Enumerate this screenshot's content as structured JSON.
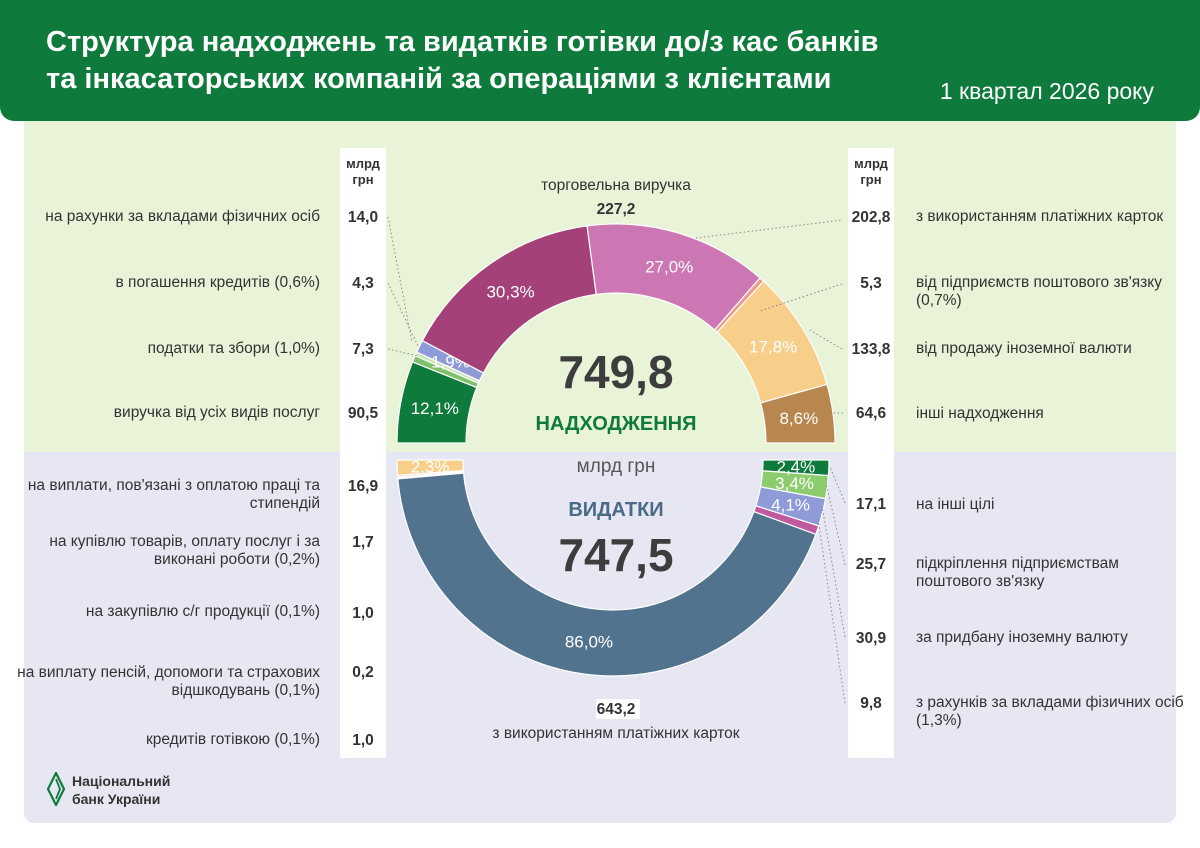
{
  "header": {
    "title_line1": "Структура надходжень та видатків готівки до/з кас банків",
    "title_line2": "та інкасаторських компаній за операціями з клієнтами",
    "period": "1 квартал 2026 року"
  },
  "unit_header_line1": "млрд",
  "unit_header_line2": "грн",
  "logo": {
    "line1": "Національний",
    "line2": "банк України"
  },
  "chart_data": {
    "type": "pie",
    "subtype": "split-donut",
    "colors": {
      "green": "#0e7a3c",
      "light_green": "#7fc06a",
      "blue_lavender": "#8f9bd8",
      "plum": "#a34178",
      "pink": "#cc77b4",
      "salmon": "#f09a8a",
      "peach": "#f8cf8a",
      "brown": "#b8864f",
      "slate": "#52738e",
      "rose": "#c05a9e",
      "mint": "#8ccc6e"
    },
    "inflows": {
      "title": "НАДХОДЖЕННЯ",
      "total": "749,8",
      "total_value": 749.8,
      "slices": [
        {
          "label": "виручка від усіх видів послуг",
          "value": 90.5,
          "value_text": "90,5",
          "pct": "12,1",
          "color": "#0e7a3c"
        },
        {
          "label": "податки та збори (1,0%)",
          "value": 7.3,
          "value_text": "7,3",
          "pct": "",
          "color": "#7fc06a"
        },
        {
          "label": "в погашення кредитів (0,6%)",
          "value": 4.3,
          "value_text": "4,3",
          "pct": "",
          "color": "#c7e5b5"
        },
        {
          "label": "на рахунки за вкладами фізичних осіб",
          "value": 14.0,
          "value_text": "14,0",
          "pct": "1,9",
          "color": "#8f9bd8"
        },
        {
          "label": "торговельна виручка",
          "value": 227.2,
          "value_text": "227,2",
          "pct": "30,3",
          "color": "#a34178"
        },
        {
          "label": "з використанням платіжних карток",
          "value": 202.8,
          "value_text": "202,8",
          "pct": "27,0",
          "color": "#cc77b4"
        },
        {
          "label": "від підприємств поштового зв'язку (0,7%)",
          "value": 5.3,
          "value_text": "5,3",
          "pct": "",
          "color": "#f09a8a"
        },
        {
          "label": "від продажу іноземної валюти",
          "value": 133.8,
          "value_text": "133,8",
          "pct": "17,8",
          "color": "#f8cf8a"
        },
        {
          "label": "інші надходження",
          "value": 64.6,
          "value_text": "64,6",
          "pct": "8,6",
          "color": "#b8864f"
        }
      ]
    },
    "outflows": {
      "title": "ВИДАТКИ",
      "unit": "млрд грн",
      "total": "747,5",
      "total_value": 747.5,
      "slices": [
        {
          "label": "на виплати, пов'язані з оплатою праці та стипендій",
          "value": 16.9,
          "value_text": "16,9",
          "pct": "2,3",
          "color": "#f8cf8a"
        },
        {
          "label": "на купівлю товарів, оплату послуг і за виконані роботи (0,2%)",
          "value": 1.7,
          "value_text": "1,7",
          "pct": "",
          "color": "#f09a8a"
        },
        {
          "label": "на закупівлю с/г продукції (0,1%)",
          "value": 1.0,
          "value_text": "1,0",
          "pct": "",
          "color": "#b8864f"
        },
        {
          "label": "на виплату пенсій, допомоги та страхових відшкодувань (0,1%)",
          "value": 0.2,
          "value_text": "0,2",
          "pct": "",
          "color": "#e0b060"
        },
        {
          "label": "кредитів готівкою (0,1%)",
          "value": 1.0,
          "value_text": "1,0",
          "pct": "",
          "color": "#cc77b4"
        },
        {
          "label": "з використанням платіжних карток",
          "value": 643.2,
          "value_text": "643,2",
          "pct": "86,0",
          "color": "#52738e"
        },
        {
          "label": "з рахунків за вкладами фізичних осіб (1,3%)",
          "value": 9.8,
          "value_text": "9,8",
          "pct": "",
          "color": "#c05a9e"
        },
        {
          "label": "за придбану іноземну валюту",
          "value": 30.9,
          "value_text": "30,9",
          "pct": "4,1",
          "color": "#8f9bd8"
        },
        {
          "label": "підкріплення підприємствам поштового зв'язку",
          "value": 25.7,
          "value_text": "25,7",
          "pct": "3,4",
          "color": "#8ccc6e"
        },
        {
          "label": "на інші цілі",
          "value": 17.1,
          "value_text": "17,1",
          "pct": "2,4",
          "color": "#0e7a3c"
        }
      ]
    }
  },
  "labels": {
    "in_left": [
      {
        "text": "на рахунки за вкладами фізичних осіб",
        "value": "14,0"
      },
      {
        "text": "в погашення кредитів (0,6%)",
        "value": "4,3"
      },
      {
        "text": "податки та збори (1,0%)",
        "value": "7,3"
      },
      {
        "text": "виручка від усіх видів послуг",
        "value": "90,5"
      }
    ],
    "in_right": [
      {
        "text": "з використанням платіжних карток",
        "value": "202,8"
      },
      {
        "text": "від підприємств поштового зв'язку (0,7%)",
        "value": "5,3"
      },
      {
        "text": "від продажу іноземної валюти",
        "value": "133,8"
      },
      {
        "text": "інші надходження",
        "value": "64,6"
      }
    ],
    "in_top": {
      "text": "торговельна виручка",
      "value": "227,2"
    },
    "out_left": [
      {
        "text": "на виплати, пов'язані з оплатою праці та стипендій",
        "value": "16,9"
      },
      {
        "text": "на купівлю товарів, оплату послуг і за виконані роботи (0,2%)",
        "value": "1,7"
      },
      {
        "text": "на закупівлю с/г продукції (0,1%)",
        "value": "1,0"
      },
      {
        "text": "на виплату пенсій, допомоги та страхових відшкодувань (0,1%)",
        "value": "0,2"
      },
      {
        "text": "кредитів готівкою (0,1%)",
        "value": "1,0"
      }
    ],
    "out_right": [
      {
        "text": "на інші цілі",
        "value": "17,1"
      },
      {
        "text": "підкріплення підприємствам поштового зв'язку",
        "value": "25,7"
      },
      {
        "text": "за придбану іноземну валюту",
        "value": "30,9"
      },
      {
        "text": "з рахунків за вкладами фізичних осіб (1,3%)",
        "value": "9,8"
      }
    ],
    "out_bottom": {
      "text": "з використанням платіжних карток",
      "value": "643,2"
    }
  }
}
